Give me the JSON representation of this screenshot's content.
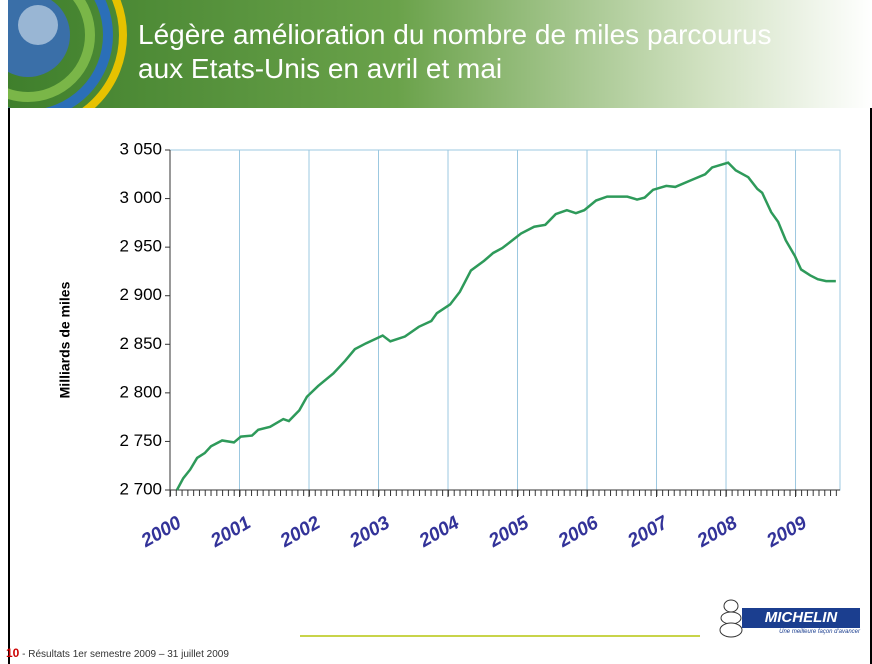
{
  "chart_data": {
    "type": "line",
    "title": "Légère amélioration du nombre de miles parcourus aux Etats-Unis en avril et mai",
    "y_label": "Milliards de miles",
    "x": [
      2000.1,
      2000.19,
      2000.29,
      2000.39,
      2000.5,
      2000.59,
      2000.75,
      2000.92,
      2001.02,
      2001.18,
      2001.27,
      2001.44,
      2001.63,
      2001.71,
      2001.86,
      2001.97,
      2002.13,
      2002.35,
      2002.52,
      2002.66,
      2002.82,
      2003.06,
      2003.17,
      2003.38,
      2003.58,
      2003.76,
      2003.84,
      2004.03,
      2004.17,
      2004.33,
      2004.52,
      2004.65,
      2004.78,
      2004.89,
      2005.05,
      2005.24,
      2005.4,
      2005.55,
      2005.71,
      2005.84,
      2005.96,
      2006.13,
      2006.29,
      2006.58,
      2006.72,
      2006.83,
      2006.95,
      2007.14,
      2007.27,
      2007.5,
      2007.7,
      2007.8,
      2008.03,
      2008.14,
      2008.32,
      2008.45,
      2008.52,
      2008.65,
      2008.75,
      2008.86,
      2008.99,
      2009.08,
      2009.21,
      2009.32,
      2009.44,
      2009.58
    ],
    "series": [
      {
        "color": "#2e9a5a",
        "values": [
          2700,
          2712,
          2721,
          2733,
          2738,
          2745,
          2751,
          2749,
          2755,
          2756,
          2762,
          2765,
          2773,
          2771,
          2782,
          2796,
          2807,
          2820,
          2833,
          2845,
          2851,
          2859,
          2853,
          2858,
          2868,
          2874,
          2882,
          2891,
          2904,
          2926,
          2936,
          2944,
          2949,
          2955,
          2964,
          2971,
          2973,
          2984,
          2988,
          2985,
          2988,
          2998,
          3002,
          3002,
          2999,
          3001,
          3009,
          3013,
          3012,
          3019,
          3025,
          3032,
          3037,
          3029,
          3022,
          3010,
          3006,
          2986,
          2976,
          2957,
          2941,
          2927,
          2921,
          2917,
          2915,
          2915
        ]
      }
    ],
    "xlim": [
      2000,
      2009.64
    ],
    "xticks": [
      2000,
      2001,
      2002,
      2003,
      2004,
      2005,
      2006,
      2007,
      2008,
      2009
    ],
    "ylim": [
      2700,
      3050
    ],
    "yticks": [
      {
        "value": 2700,
        "label": "2 700"
      },
      {
        "value": 2750,
        "label": "2 750"
      },
      {
        "value": 2800,
        "label": "2 800"
      },
      {
        "value": 2850,
        "label": "2 850"
      },
      {
        "value": 2900,
        "label": "2 900"
      },
      {
        "value": 2950,
        "label": "2 950"
      },
      {
        "value": 3000,
        "label": "3 000"
      },
      {
        "value": 3050,
        "label": "3 050"
      }
    ],
    "grid": true
  },
  "footer": {
    "page": "10",
    "text": "- Résultats 1er semestre  2009 – 31 juillet 2009"
  },
  "logo": {
    "brand": "MICHELIN",
    "tagline": "Une meilleure façon d'avancer"
  }
}
